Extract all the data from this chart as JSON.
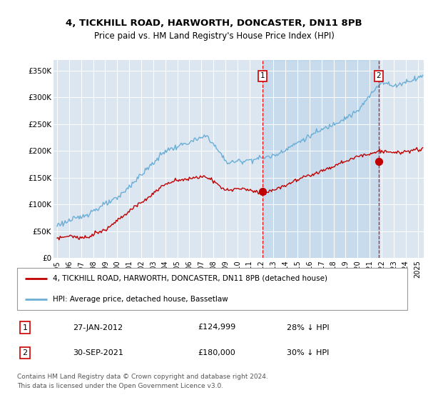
{
  "title": "4, TICKHILL ROAD, HARWORTH, DONCASTER, DN11 8PB",
  "subtitle": "Price paid vs. HM Land Registry's House Price Index (HPI)",
  "legend_line1": "4, TICKHILL ROAD, HARWORTH, DONCASTER, DN11 8PB (detached house)",
  "legend_line2": "HPI: Average price, detached house, Bassetlaw",
  "sale1_label": "1",
  "sale1_date": "27-JAN-2012",
  "sale1_price": "£124,999",
  "sale1_hpi": "28% ↓ HPI",
  "sale1_year": 2012.07,
  "sale1_value": 124999,
  "sale2_label": "2",
  "sale2_date": "30-SEP-2021",
  "sale2_price": "£180,000",
  "sale2_hpi": "30% ↓ HPI",
  "sale2_year": 2021.75,
  "sale2_value": 180000,
  "hpi_color": "#6baed6",
  "price_color": "#c00000",
  "vline_color": "#ee0000",
  "bg_color": "#dce6f1",
  "fill_color": "#dce6f1",
  "footer": "Contains HM Land Registry data © Crown copyright and database right 2024.\nThis data is licensed under the Open Government Licence v3.0.",
  "ylim": [
    0,
    370000
  ],
  "yticks": [
    0,
    50000,
    100000,
    150000,
    200000,
    250000,
    300000,
    350000
  ],
  "xlim_start": 1994.7,
  "xlim_end": 2025.5
}
